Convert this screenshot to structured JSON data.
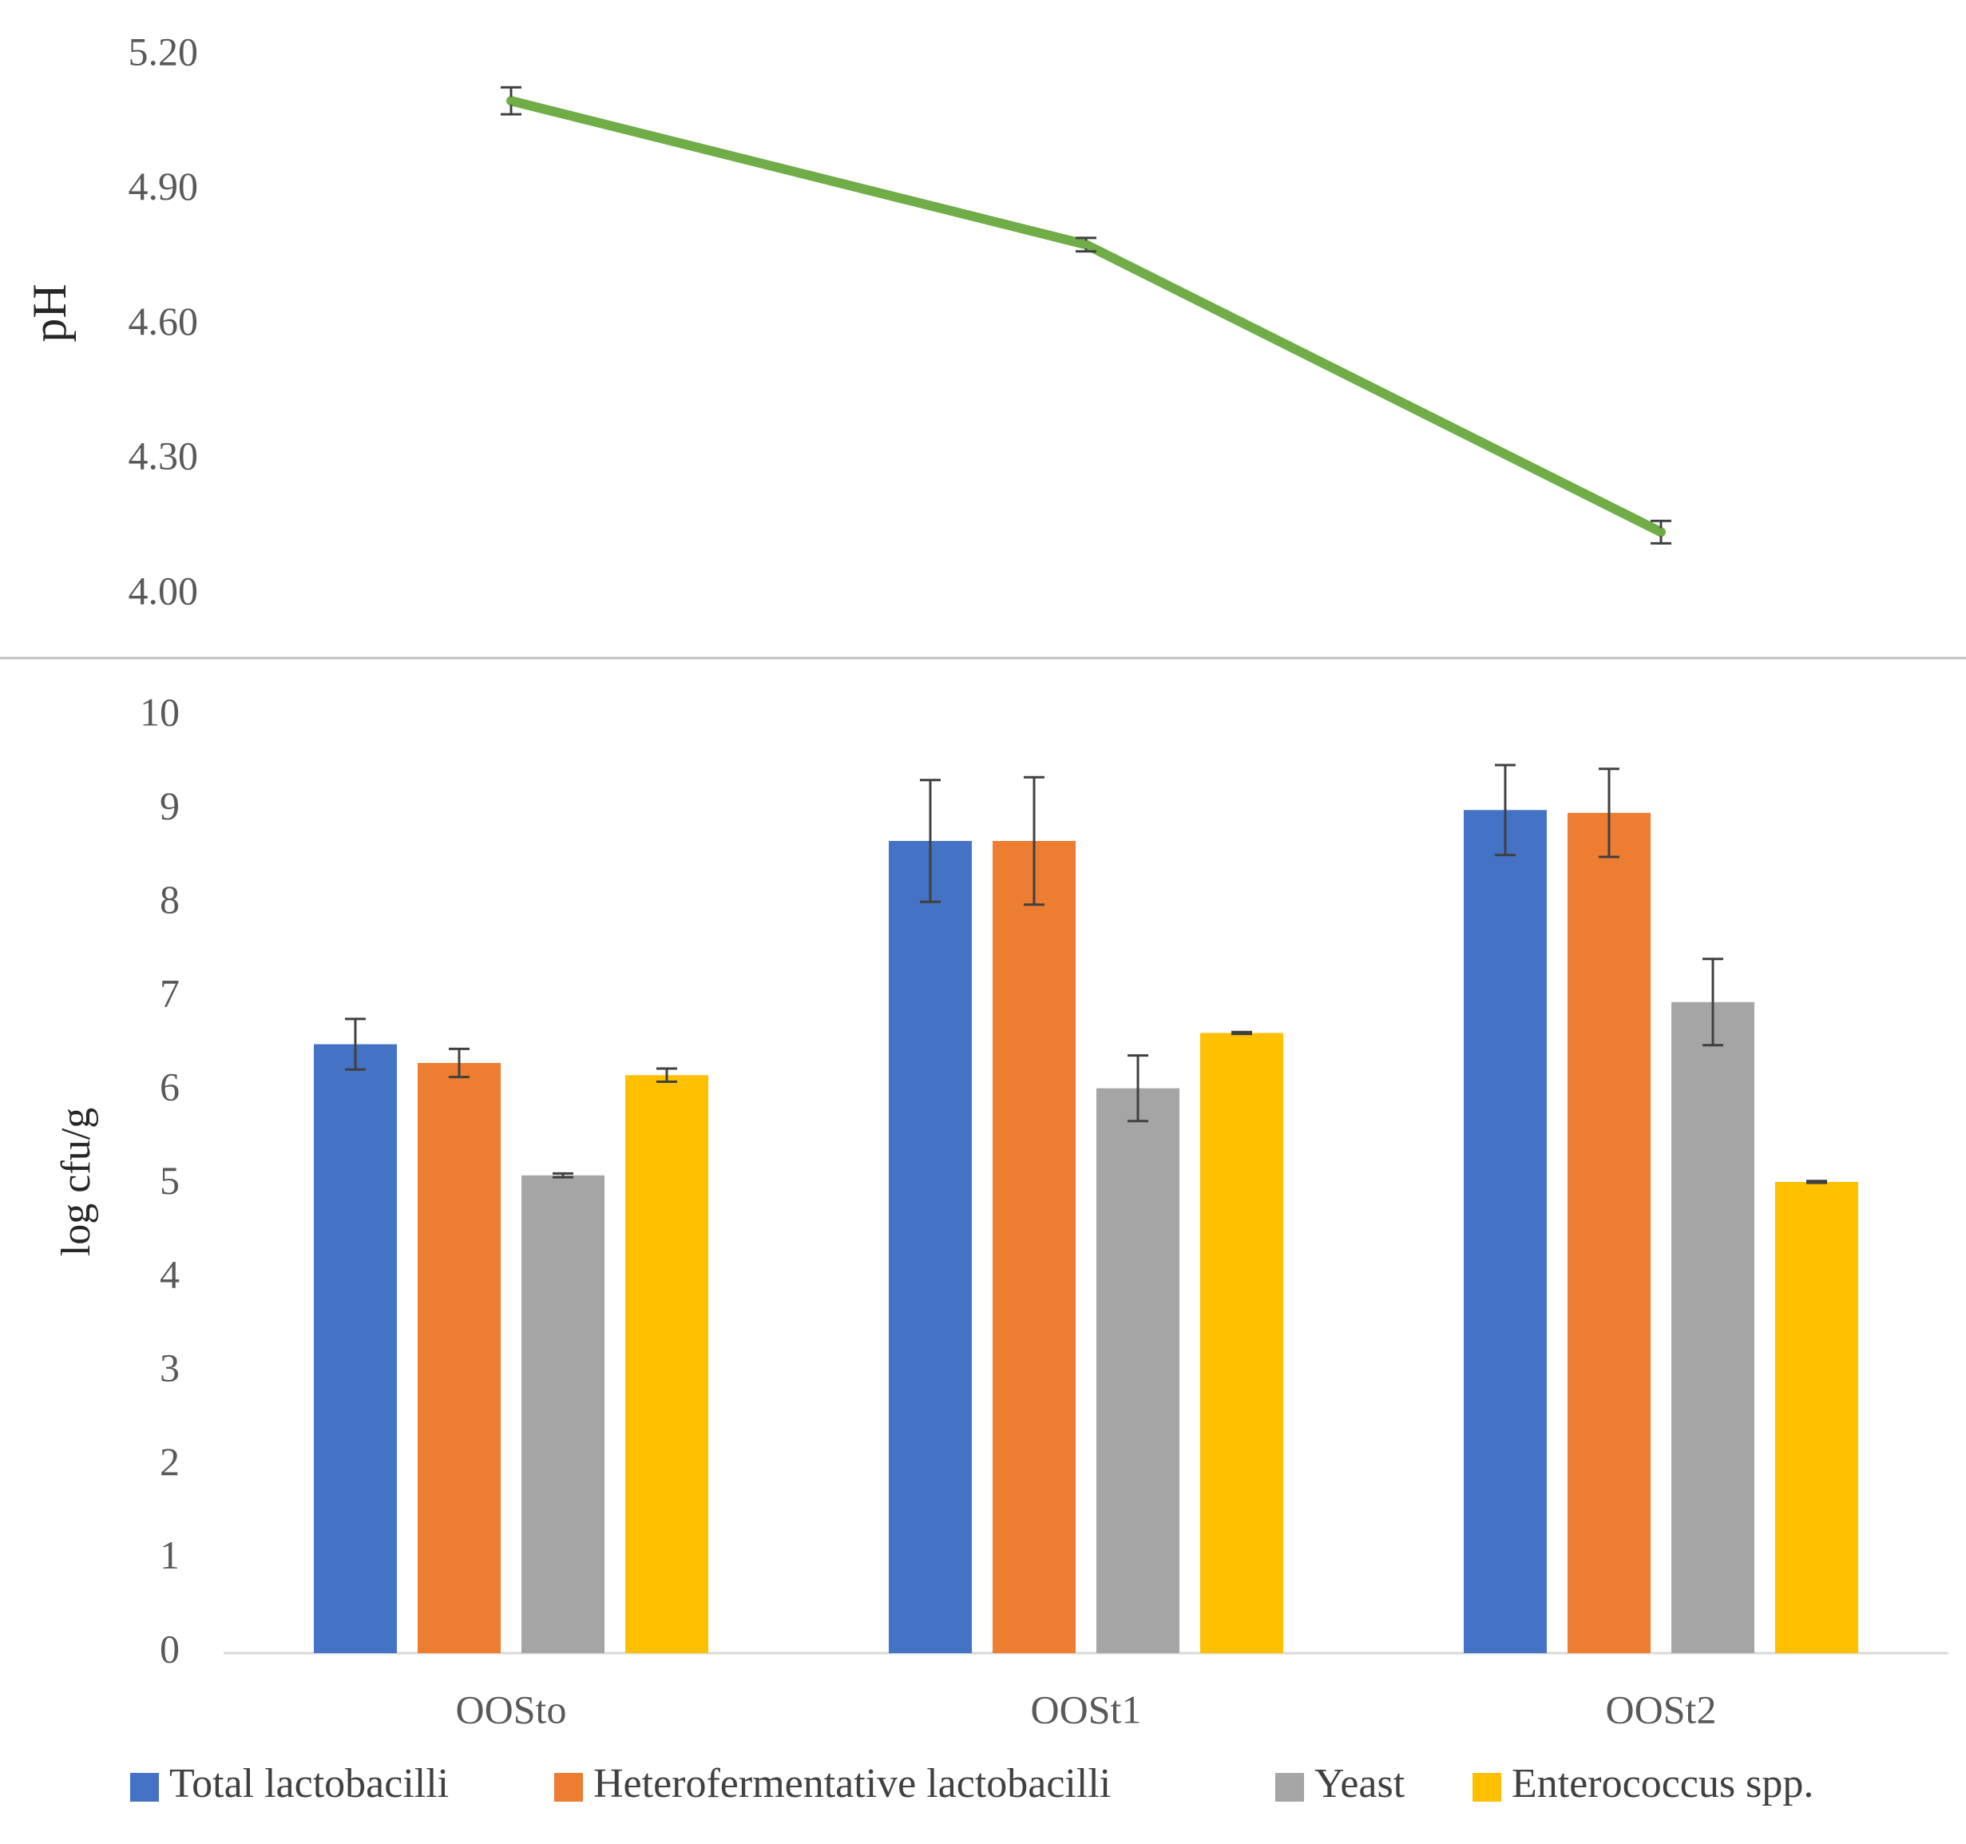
{
  "chart_data": [
    {
      "type": "line",
      "title": "",
      "xlabel": "",
      "ylabel": "pH",
      "categories": [
        "OOSto",
        "OOSt1",
        "OOSt2"
      ],
      "yticks": [
        "4.00",
        "4.30",
        "4.60",
        "4.90",
        "5.20"
      ],
      "ylim": [
        4.0,
        5.2
      ],
      "series": [
        {
          "name": "pH",
          "color": "#70AD47",
          "values": [
            5.1,
            4.78,
            4.14
          ],
          "errors": [
            0.03,
            0.015,
            0.025
          ]
        }
      ]
    },
    {
      "type": "bar",
      "title": "",
      "xlabel": "",
      "ylabel": "log cfu/g",
      "categories": [
        "OOSto",
        "OOSt1",
        "OOSt2"
      ],
      "yticks": [
        "0",
        "1",
        "2",
        "3",
        "4",
        "5",
        "6",
        "7",
        "8",
        "9",
        "10"
      ],
      "ylim": [
        0,
        10
      ],
      "legend_position": "bottom",
      "series": [
        {
          "name": "Total lactobacilli",
          "color": "#4472C4",
          "values": [
            6.5,
            8.67,
            9.0
          ],
          "errors": [
            0.27,
            0.65,
            0.48
          ]
        },
        {
          "name": "Heterofermentative lactobacilli",
          "color": "#ED7D31",
          "values": [
            6.3,
            8.67,
            8.97
          ],
          "errors": [
            0.15,
            0.68,
            0.47
          ]
        },
        {
          "name": "Yeast",
          "color": "#A5A5A5",
          "values": [
            5.1,
            6.03,
            6.95
          ],
          "errors": [
            0.02,
            0.35,
            0.46
          ]
        },
        {
          "name": "Enterococcus spp.",
          "color": "#FFC000",
          "values": [
            6.17,
            6.62,
            5.03
          ],
          "errors": [
            0.07,
            0.01,
            0.01
          ]
        }
      ]
    }
  ]
}
